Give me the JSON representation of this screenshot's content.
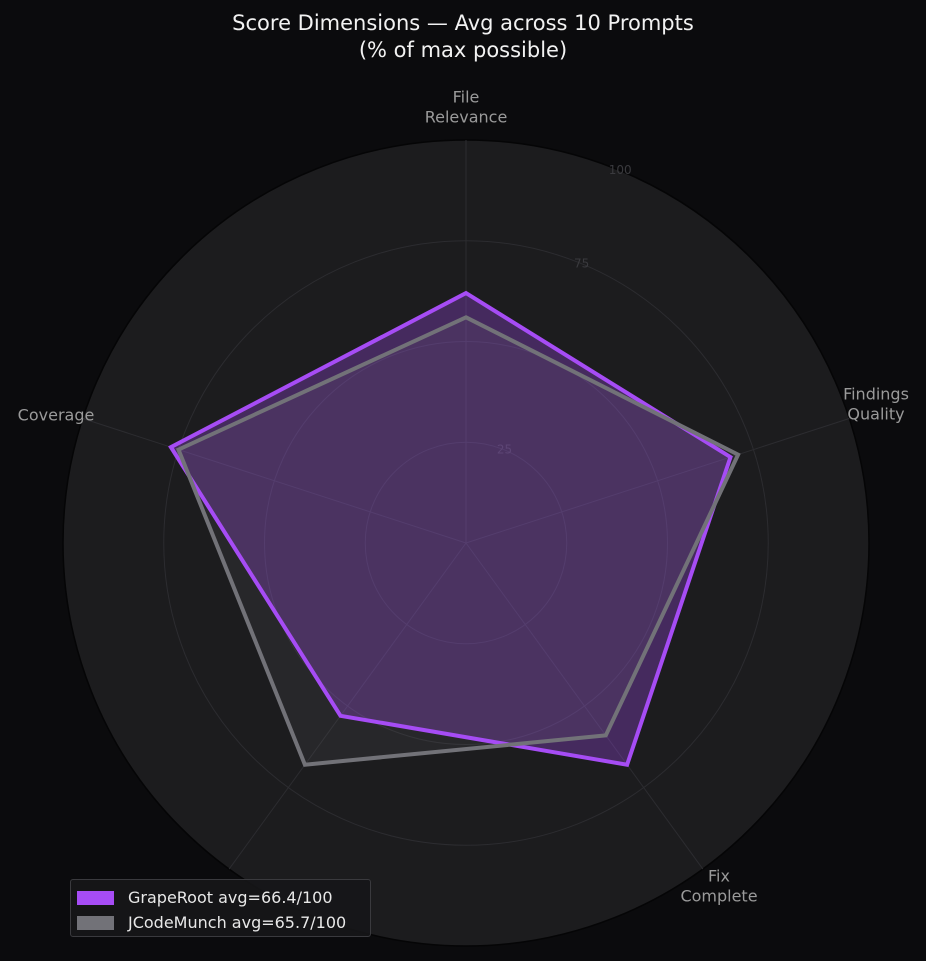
{
  "chart_data": {
    "type": "radar",
    "title_lines": [
      "Score Dimensions — Avg across 10 Prompts",
      "(% of max possible)"
    ],
    "axes": [
      {
        "label_lines": [
          "File",
          "Relevance"
        ]
      },
      {
        "label_lines": [
          "Findings",
          "Quality"
        ]
      },
      {
        "label_lines": [
          "Fix",
          "Complete"
        ]
      },
      {
        "label_lines": [
          ""
        ]
      },
      {
        "label_lines": [
          "Coverage"
        ]
      }
    ],
    "r_range": [
      0,
      100
    ],
    "r_ticks": [
      25,
      50,
      75,
      100
    ],
    "r_tick_labels_shown": [
      "25",
      "",
      "75",
      "100"
    ],
    "grid": true,
    "legend_placement": "bottom-left",
    "series": [
      {
        "name": "GrapeRoot avg=66.4/100",
        "color": "#a64cf5",
        "values": [
          62,
          69,
          68,
          53,
          77
        ]
      },
      {
        "name": "JCodeMunch avg=65.7/100",
        "color": "#727278",
        "values": [
          56,
          71,
          59,
          68,
          75
        ]
      }
    ]
  }
}
